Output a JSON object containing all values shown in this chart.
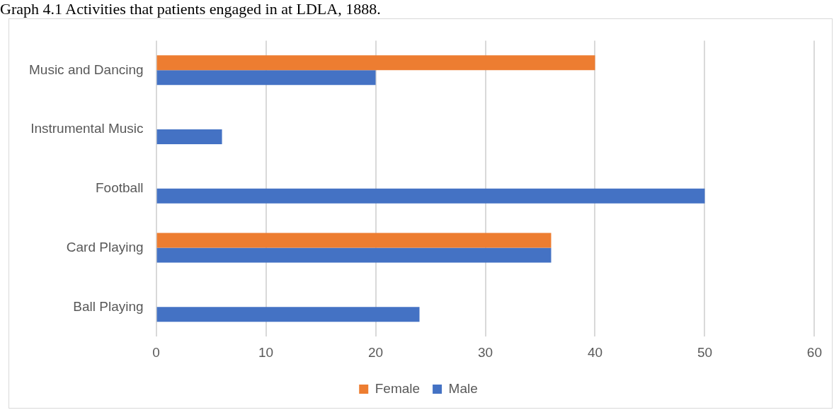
{
  "chart_data": {
    "type": "bar",
    "orientation": "horizontal",
    "title": "Graph 4.1 Activities that patients engaged in at LDLA, 1888.",
    "categories": [
      "Music and Dancing",
      "Instrumental Music",
      "Football",
      "Card Playing",
      "Ball Playing"
    ],
    "series": [
      {
        "name": "Female",
        "color": "#ed7d31",
        "values": [
          40,
          null,
          null,
          36,
          null
        ]
      },
      {
        "name": "Male",
        "color": "#4472c4",
        "values": [
          20,
          6,
          50,
          36,
          24
        ]
      }
    ],
    "xlim": [
      0,
      60
    ],
    "xticks": [
      0,
      10,
      20,
      30,
      40,
      50,
      60
    ],
    "grid": "x",
    "legend": "bottom"
  }
}
